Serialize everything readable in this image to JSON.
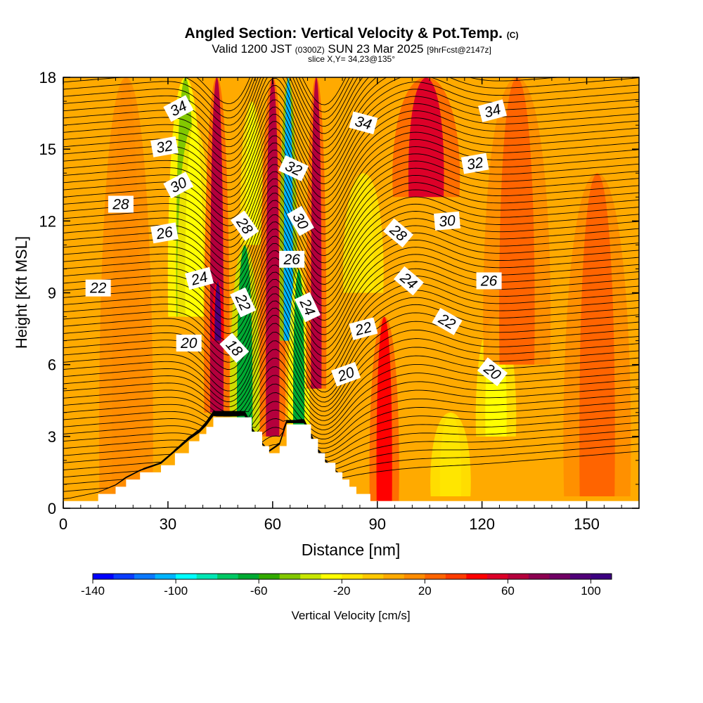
{
  "chart_data": {
    "type": "heatmap",
    "title": "Angled Section: Vertical Velocity & Pot.Temp.",
    "title_mark": "(C)",
    "subtitle_parts": [
      "Valid 1200 JST ",
      "(0300Z)",
      " SUN 23 Mar 2025 ",
      "[9hrFcst@2147z]"
    ],
    "slice_label": "slice X,Y= 34,23@135°",
    "xlabel": "Distance [nm]",
    "ylabel": "Height [Kft MSL]",
    "xlim": [
      0,
      165
    ],
    "ylim": [
      0,
      18
    ],
    "x_ticks": [
      0,
      30,
      60,
      90,
      120,
      150
    ],
    "y_ticks": [
      0,
      3,
      6,
      9,
      12,
      15,
      18
    ],
    "x_tick_labels": [
      "0",
      "30",
      "60",
      "90",
      "120",
      "150"
    ],
    "y_tick_labels": [
      "0",
      "3",
      "6",
      "9",
      "12",
      "15",
      "18"
    ],
    "colorbar": {
      "label": "Vertical Velocity [cm/s]",
      "min": -140,
      "max": 110,
      "step": 10,
      "tick_values": [
        -140,
        -100,
        -60,
        -20,
        20,
        60,
        100
      ],
      "tick_labels": [
        "-140",
        "-100",
        "-60",
        "-20",
        "20",
        "60",
        "100"
      ],
      "colors": [
        "#0000ff",
        "#0a3cff",
        "#0a78ff",
        "#00b4ff",
        "#00ffff",
        "#00e6b4",
        "#00c864",
        "#00aa32",
        "#32aa00",
        "#82c800",
        "#c8e600",
        "#ffff00",
        "#ffe600",
        "#ffc800",
        "#ffaa00",
        "#ff8c00",
        "#ff6400",
        "#ff3c00",
        "#ff0000",
        "#dc0028",
        "#b4003c",
        "#8c0050",
        "#700064",
        "#500078",
        "#3c0080"
      ]
    },
    "terrain": [
      {
        "x": 0,
        "h": 0.3
      },
      {
        "x": 10,
        "h": 0.6
      },
      {
        "x": 15,
        "h": 0.9
      },
      {
        "x": 18,
        "h": 1.2
      },
      {
        "x": 22,
        "h": 1.5
      },
      {
        "x": 28,
        "h": 1.8
      },
      {
        "x": 32,
        "h": 2.3
      },
      {
        "x": 36,
        "h": 2.8
      },
      {
        "x": 39,
        "h": 3.1
      },
      {
        "x": 41,
        "h": 3.4
      },
      {
        "x": 43,
        "h": 3.8
      },
      {
        "x": 52,
        "h": 3.8
      },
      {
        "x": 54,
        "h": 3.2
      },
      {
        "x": 57,
        "h": 2.6
      },
      {
        "x": 59,
        "h": 2.3
      },
      {
        "x": 62,
        "h": 2.6
      },
      {
        "x": 64,
        "h": 3.5
      },
      {
        "x": 69,
        "h": 3.5
      },
      {
        "x": 71,
        "h": 2.9
      },
      {
        "x": 73,
        "h": 2.3
      },
      {
        "x": 75,
        "h": 1.9
      },
      {
        "x": 78,
        "h": 1.5
      },
      {
        "x": 80,
        "h": 1.2
      },
      {
        "x": 82,
        "h": 0.9
      },
      {
        "x": 84,
        "h": 0.6
      },
      {
        "x": 88,
        "h": 0.3
      },
      {
        "x": 165,
        "h": 0.3
      }
    ],
    "velocity_columns": [
      {
        "x": 18,
        "w": 4,
        "ytop": 18,
        "ybot": 0,
        "v": 15
      },
      {
        "x": 35,
        "w": 2.6,
        "ytop": 18,
        "ybot": 8,
        "v": -50
      },
      {
        "x": 37.5,
        "w": 2.5,
        "ytop": 16,
        "ybot": 8,
        "v": -25
      },
      {
        "x": 44,
        "w": 1.9,
        "ytop": 18,
        "ybot": 4,
        "v": 65
      },
      {
        "x": 44.3,
        "w": 0.9,
        "ytop": 9.5,
        "ybot": 7,
        "v": 95
      },
      {
        "x": 52,
        "w": 2.2,
        "ytop": 11,
        "ybot": 3,
        "v": -70
      },
      {
        "x": 54,
        "w": 1.7,
        "ytop": 17,
        "ybot": 11,
        "v": -25
      },
      {
        "x": 60,
        "w": 1.9,
        "ytop": 18,
        "ybot": 3,
        "v": 65
      },
      {
        "x": 64.5,
        "w": 1.3,
        "ytop": 18,
        "ybot": 7,
        "v": -105
      },
      {
        "x": 67.5,
        "w": 1.6,
        "ytop": 10,
        "ybot": 3,
        "v": -65
      },
      {
        "x": 72.5,
        "w": 1.5,
        "ytop": 18,
        "ybot": 5,
        "v": 65
      },
      {
        "x": 86,
        "w": 3,
        "ytop": 14,
        "ybot": 9,
        "v": -20
      },
      {
        "x": 92,
        "w": 2.2,
        "ytop": 8,
        "ybot": 0.3,
        "v": 45
      },
      {
        "x": 104,
        "w": 5,
        "ytop": 18,
        "ybot": 13,
        "v": 50
      },
      {
        "x": 124,
        "w": 3,
        "ytop": 8,
        "ybot": 3,
        "v": -30
      },
      {
        "x": 111,
        "w": 3,
        "ytop": 4,
        "ybot": 0.5,
        "v": -20
      },
      {
        "x": 130,
        "w": 5,
        "ytop": 18,
        "ybot": 6,
        "v": 25
      },
      {
        "x": 153,
        "w": 5,
        "ytop": 14,
        "ybot": 0.5,
        "v": 20
      }
    ],
    "isotherm_levels": [
      18,
      20,
      22,
      24,
      26,
      28,
      30,
      32,
      34
    ],
    "contour_labels": [
      {
        "text": "34",
        "x": 33,
        "y": 16.7,
        "angle": -28
      },
      {
        "text": "32",
        "x": 29,
        "y": 15.1,
        "angle": -10
      },
      {
        "text": "30",
        "x": 33,
        "y": 13.5,
        "angle": -28
      },
      {
        "text": "28",
        "x": 16.5,
        "y": 12.7,
        "angle": 0
      },
      {
        "text": "26",
        "x": 29,
        "y": 11.5,
        "angle": -10
      },
      {
        "text": "24",
        "x": 39,
        "y": 9.6,
        "angle": -15
      },
      {
        "text": "22",
        "x": 10,
        "y": 9.2,
        "angle": 0
      },
      {
        "text": "20",
        "x": 36,
        "y": 6.9,
        "angle": 0
      },
      {
        "text": "28",
        "x": 52,
        "y": 11.8,
        "angle": 55
      },
      {
        "text": "22",
        "x": 51.5,
        "y": 8.6,
        "angle": 65
      },
      {
        "text": "18",
        "x": 49,
        "y": 6.7,
        "angle": 48
      },
      {
        "text": "32",
        "x": 66,
        "y": 14.2,
        "angle": 25
      },
      {
        "text": "30",
        "x": 68,
        "y": 12.0,
        "angle": 60
      },
      {
        "text": "26",
        "x": 65.5,
        "y": 10.4,
        "angle": 0
      },
      {
        "text": "24",
        "x": 70,
        "y": 8.4,
        "angle": 65
      },
      {
        "text": "34",
        "x": 86,
        "y": 16.1,
        "angle": 15
      },
      {
        "text": "22",
        "x": 86,
        "y": 7.5,
        "angle": -15
      },
      {
        "text": "20",
        "x": 81,
        "y": 5.6,
        "angle": -20
      },
      {
        "text": "28",
        "x": 96,
        "y": 11.5,
        "angle": 40
      },
      {
        "text": "24",
        "x": 99,
        "y": 9.5,
        "angle": 40
      },
      {
        "text": "22",
        "x": 110,
        "y": 7.8,
        "angle": 30
      },
      {
        "text": "20",
        "x": 123,
        "y": 5.7,
        "angle": 38
      },
      {
        "text": "34",
        "x": 123,
        "y": 16.6,
        "angle": -15
      },
      {
        "text": "32",
        "x": 118,
        "y": 14.4,
        "angle": -10
      },
      {
        "text": "30",
        "x": 110,
        "y": 12.0,
        "angle": -5
      },
      {
        "text": "26",
        "x": 122,
        "y": 9.5,
        "angle": 0
      }
    ]
  }
}
